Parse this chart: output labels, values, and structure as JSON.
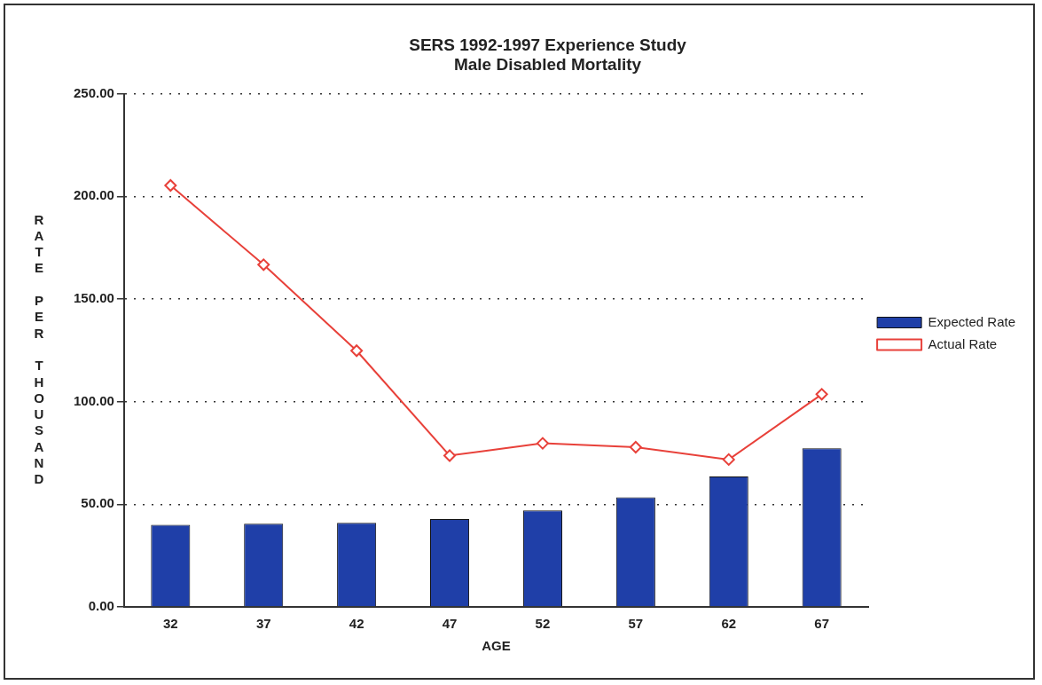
{
  "chart_data": {
    "type": "bar",
    "title": [
      "SERS 1992-1997 Experience Study",
      "Male Disabled Mortality"
    ],
    "xlabel": "AGE",
    "ylabel": "RATE PER THOUSAND",
    "categories": [
      "32",
      "37",
      "42",
      "47",
      "52",
      "57",
      "62",
      "67"
    ],
    "series": [
      {
        "name": "Expected Rate",
        "color": "#1f3fa8",
        "values": [
          40.0,
          40.5,
          41.0,
          42.8,
          47.0,
          53.4,
          63.5,
          77.3
        ]
      },
      {
        "name": "Actual Rate",
        "type": "line",
        "color": "#e8413a",
        "values": [
          205.3,
          166.7,
          124.8,
          73.7,
          79.7,
          77.8,
          71.8,
          103.6
        ]
      }
    ],
    "ylim": [
      0,
      250
    ],
    "yticks": [
      {
        "value": 0,
        "label": "0.00"
      },
      {
        "value": 50,
        "label": "50.00"
      },
      {
        "value": 100,
        "label": "100.00"
      },
      {
        "value": 150,
        "label": "150.00"
      },
      {
        "value": 200,
        "label": "200.00"
      },
      {
        "value": 250,
        "label": "250.00"
      }
    ],
    "grid": "y",
    "legend": "right",
    "marker": "diamond",
    "line_style": "solid"
  }
}
